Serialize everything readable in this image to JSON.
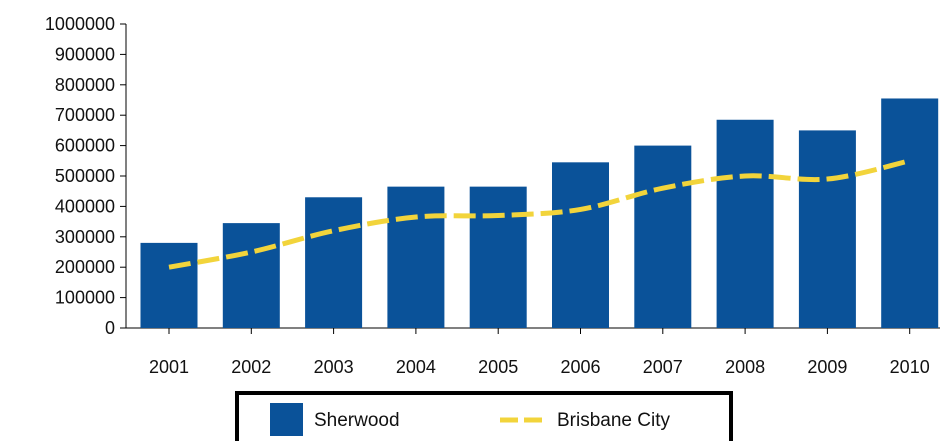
{
  "chart_data": {
    "type": "bar",
    "title": "",
    "xlabel": "",
    "ylabel": "",
    "categories": [
      "2001",
      "2002",
      "2003",
      "2004",
      "2005",
      "2006",
      "2007",
      "2008",
      "2009",
      "2010"
    ],
    "ylim": [
      0,
      1000000
    ],
    "yticks": [
      "0",
      "100000",
      "200000",
      "300000",
      "400000",
      "500000",
      "600000",
      "700000",
      "800000",
      "900000",
      "1000000"
    ],
    "grid": false,
    "legend_position": "bottom",
    "series": [
      {
        "name": "Sherwood",
        "kind": "bar",
        "color": "#0a5299",
        "values": [
          280000,
          345000,
          430000,
          465000,
          465000,
          545000,
          600000,
          685000,
          650000,
          755000
        ]
      },
      {
        "name": "Brisbane City",
        "kind": "line",
        "style": "dashed",
        "color": "#f2d43b",
        "values": [
          200000,
          250000,
          320000,
          365000,
          370000,
          390000,
          460000,
          500000,
          490000,
          550000
        ]
      }
    ]
  }
}
